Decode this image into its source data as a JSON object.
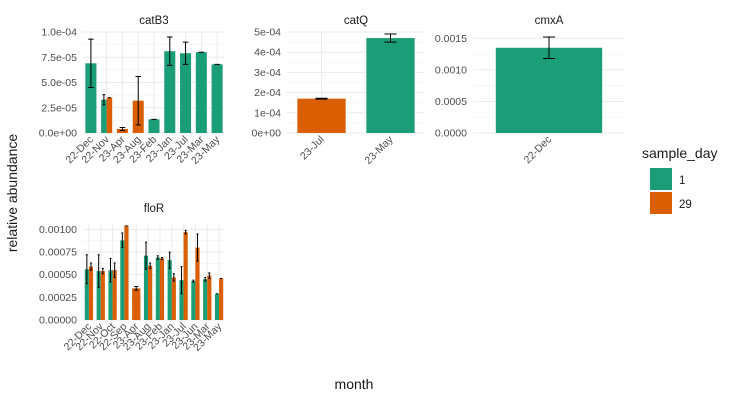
{
  "axes": {
    "xlabel": "month",
    "ylabel": "relative abundance"
  },
  "legend": {
    "title": "sample_day",
    "items": [
      {
        "label": "1",
        "color": "#1b9e77"
      },
      {
        "label": "29",
        "color": "#d95f02"
      }
    ]
  },
  "chart_data": [
    {
      "type": "bar",
      "title": "catB3",
      "categories": [
        "22-Dec",
        "22-Nov",
        "23-Apr",
        "23-Aug",
        "23-Feb",
        "23-Jan",
        "23-Jul",
        "23-Mar",
        "23-May"
      ],
      "ylim": [
        0,
        0.0001
      ],
      "yticks": [
        0,
        2.5e-05,
        5e-05,
        7.5e-05,
        0.0001
      ],
      "ytick_labels": [
        "0.0e+00",
        "2.5e-05",
        "5.0e-05",
        "7.5e-05",
        "1.0e-04"
      ],
      "series": [
        {
          "name": "1",
          "values": [
            6.9e-05,
            3.3e-05,
            null,
            null,
            1.35e-05,
            8.1e-05,
            7.9e-05,
            8e-05,
            6.8e-05
          ],
          "err": [
            2.4e-05,
            5e-06,
            null,
            null,
            0,
            1.4e-05,
            1.1e-05,
            0,
            0
          ]
        },
        {
          "name": "29",
          "values": [
            null,
            3.5e-05,
            4e-06,
            3.2e-05,
            null,
            null,
            null,
            null,
            null
          ],
          "err": [
            null,
            0,
            1.5e-06,
            2.4e-05,
            null,
            null,
            null,
            null,
            null
          ]
        }
      ]
    },
    {
      "type": "bar",
      "title": "catQ",
      "categories": [
        "23-Jul",
        "23-May"
      ],
      "ylim": [
        0,
        0.0005
      ],
      "yticks": [
        0,
        0.0001,
        0.0002,
        0.0003,
        0.0004,
        0.0005
      ],
      "ytick_labels": [
        "0e+00",
        "1e-04",
        "2e-04",
        "3e-04",
        "4e-04",
        "5e-04"
      ],
      "series": [
        {
          "name": "1",
          "values": [
            null,
            0.00047
          ],
          "err": [
            null,
            2e-05
          ]
        },
        {
          "name": "29",
          "values": [
            0.00017,
            null
          ],
          "err": [
            2e-06,
            null
          ]
        }
      ]
    },
    {
      "type": "bar",
      "title": "cmxA",
      "categories": [
        "22-Dec"
      ],
      "ylim": [
        0,
        0.0016
      ],
      "yticks": [
        0,
        0.0005,
        0.001,
        0.0015
      ],
      "ytick_labels": [
        "0.0000",
        "0.0005",
        "0.0010",
        "0.0015"
      ],
      "series": [
        {
          "name": "1",
          "values": [
            0.00135
          ],
          "err": [
            0.00017
          ]
        }
      ]
    },
    {
      "type": "bar",
      "title": "floR",
      "categories": [
        "22-Dec",
        "22-Nov",
        "22-Oct",
        "22-Sep",
        "23-Apr",
        "23-Aug",
        "23-Feb",
        "23-Jan",
        "23-Jul",
        "23-Jun",
        "23-Mar",
        "23-May"
      ],
      "ylim": [
        0,
        0.00106
      ],
      "yticks": [
        0,
        0.00025,
        0.0005,
        0.00075,
        0.001
      ],
      "ytick_labels": [
        "0.00000",
        "0.00025",
        "0.00050",
        "0.00075",
        "0.00100"
      ],
      "series": [
        {
          "name": "1",
          "values": [
            0.00056,
            0.00054,
            0.00055,
            0.00088,
            null,
            0.00071,
            0.00069,
            0.00066,
            0.00044,
            0.00043,
            0.00045,
            0.00029
          ],
          "err": [
            0.00016,
            0.00018,
            0.00013,
            8e-05,
            null,
            0.00015,
            2e-05,
            9e-05,
            0.00015,
            1e-05,
            2e-05,
            0
          ]
        },
        {
          "name": "29",
          "values": [
            0.00059,
            0.00054,
            0.00055,
            0.00104,
            0.00035,
            0.0006,
            0.00068,
            0.00047,
            0.00097,
            0.0008,
            0.00049,
            0.00046
          ],
          "err": [
            4e-05,
            3e-05,
            8e-05,
            0,
            2e-05,
            3e-05,
            1e-05,
            4e-05,
            2e-05,
            0.00015,
            3e-05,
            0
          ]
        }
      ]
    }
  ]
}
